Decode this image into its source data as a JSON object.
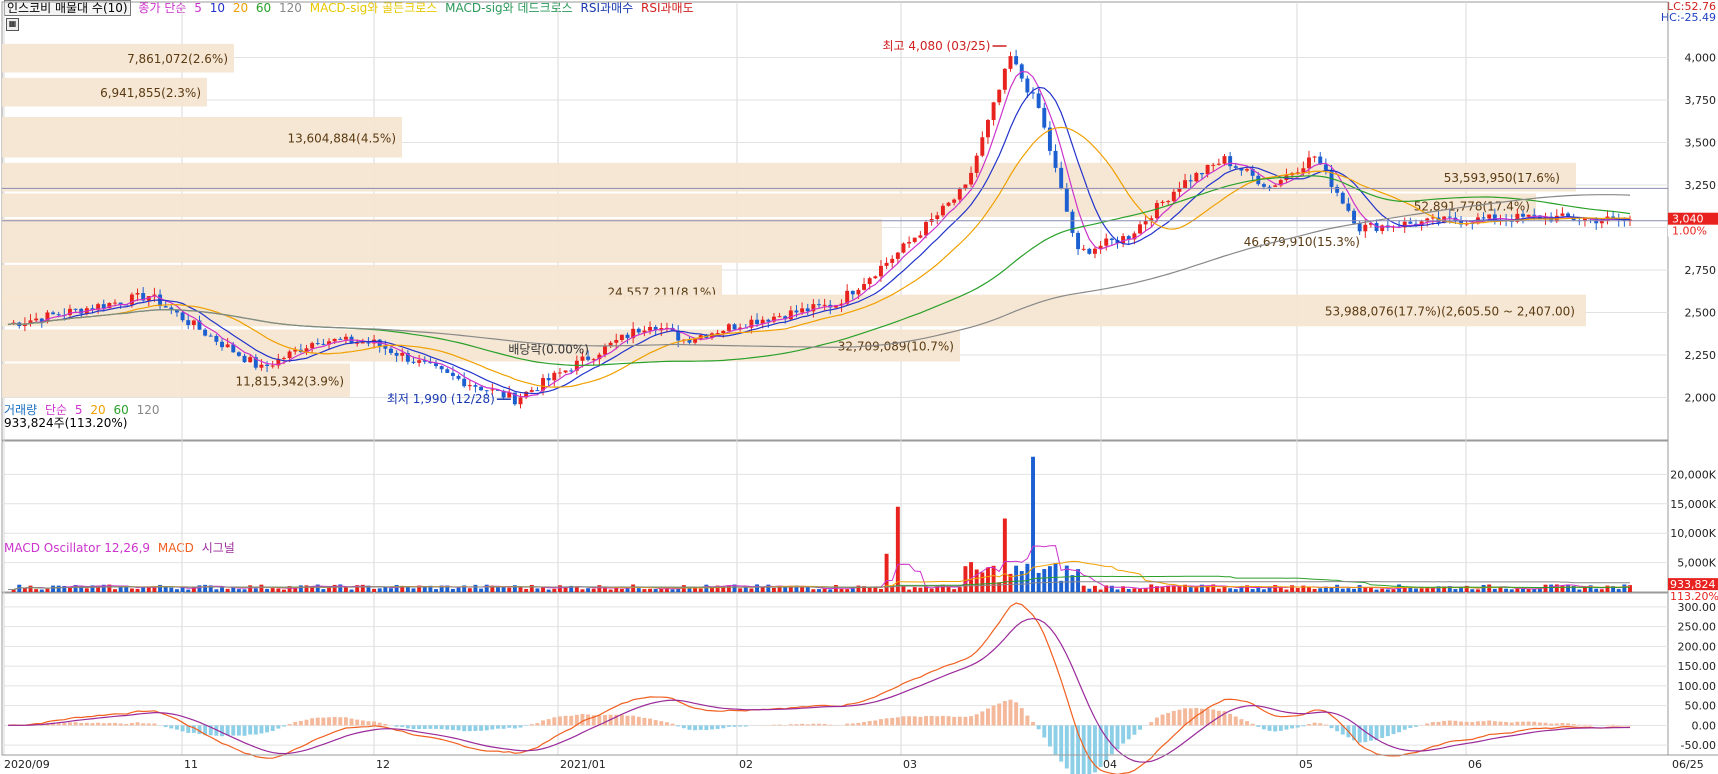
{
  "header": {
    "title": "인스코비 매물대 수(10)",
    "ma_label": "종가 단순",
    "ma_periods": [
      "5",
      "10",
      "20",
      "60",
      "120"
    ],
    "ma_colors": [
      "#cc33cc",
      "#2233cc",
      "#f0a000",
      "#2aa02a",
      "#888888"
    ],
    "signals": [
      {
        "label": "MACD-sig와 골든크로스",
        "color": "#f0d000"
      },
      {
        "label": "MACD-sig와 데드크로스",
        "color": "#2a9a5a"
      },
      {
        "label": "RSI과매수",
        "color": "#1a3ab0"
      },
      {
        "label": "RSI과매도",
        "color": "#d02020"
      }
    ],
    "right_top_1": "LC:52.76",
    "right_top_2": "HC:-25.49"
  },
  "volume_panel": {
    "label": "거래량",
    "ma_label": "단순",
    "ma_periods": [
      "5",
      "20",
      "60",
      "120"
    ],
    "value_text": "933,824주(113.20%)",
    "badge_value": "933,824",
    "badge_pct": "113.20%"
  },
  "macd_panel": {
    "label": "MACD Oscillator 12,26,9",
    "macd_label": "MACD",
    "signal_label": "시그널"
  },
  "price_badge": {
    "value": "3,040",
    "pct": "1.00%"
  },
  "annotations": {
    "high": "최고 4,080 (03/25)",
    "low": "최저 1,990 (12/28)",
    "ex_dividend": "배당락(0.00%)"
  },
  "chart_data": [
    {
      "type": "candlestick",
      "ylim": [
        1750,
        4250
      ],
      "yticks": [
        2000,
        2250,
        2500,
        2750,
        3000,
        3250,
        3500,
        3750,
        4000
      ],
      "ytick_labels": [
        "2,000",
        "2,250",
        "2,500",
        "2,750",
        "3,000",
        "3,250",
        "3,500",
        "3,750",
        "4,000"
      ],
      "x_labels": [
        "2020/09",
        "11",
        "12",
        "2021/01",
        "02",
        "03",
        "04",
        "05",
        "06",
        "06/25"
      ],
      "volume_profile": [
        {
          "low": 3900,
          "high": 4080,
          "label": "7,861,072(2.6%)"
        },
        {
          "low": 3700,
          "high": 3880,
          "label": "6,941,855(2.3%)"
        },
        {
          "low": 3400,
          "high": 3650,
          "label": "13,604,884(4.5%)"
        },
        {
          "low": 3200,
          "high": 3380,
          "label": "53,593,950(17.6%)"
        },
        {
          "low": 3050,
          "high": 3200,
          "label": "52,891,778(17.4%)"
        },
        {
          "low": 2780,
          "high": 3050,
          "label": "46,679,910(15.3%)"
        },
        {
          "low": 2560,
          "high": 2780,
          "label": "24,557,211(8.1%)"
        },
        {
          "low": 2407,
          "high": 2605,
          "label": "53,988,076(17.7%)(2,605.50 ~ 2,407.00)"
        },
        {
          "low": 2200,
          "high": 2400,
          "label": "32,709,089(10.7%)"
        },
        {
          "low": 1990,
          "high": 2200,
          "label": "11,815,342(3.9%)"
        }
      ]
    },
    {
      "type": "bar",
      "series": [
        {
          "name": "거래량"
        }
      ],
      "ylim": [
        0,
        25000
      ],
      "yticks": [
        5000,
        10000,
        15000,
        20000
      ],
      "ytick_labels": [
        "5,000K",
        "10,000K",
        "15,000K",
        "20,000K"
      ]
    },
    {
      "type": "line",
      "series": [
        {
          "name": "MACD"
        },
        {
          "name": "시그널"
        },
        {
          "name": "MACD Oscillator 12,26,9"
        }
      ],
      "ylim": [
        -75,
        325
      ],
      "yticks": [
        -50,
        0,
        50,
        100,
        150,
        200,
        250,
        300
      ],
      "ytick_labels": [
        "-50.00",
        "0.00",
        "50.00",
        "100.00",
        "150.00",
        "200.00",
        "250.00",
        "300.00"
      ]
    }
  ]
}
